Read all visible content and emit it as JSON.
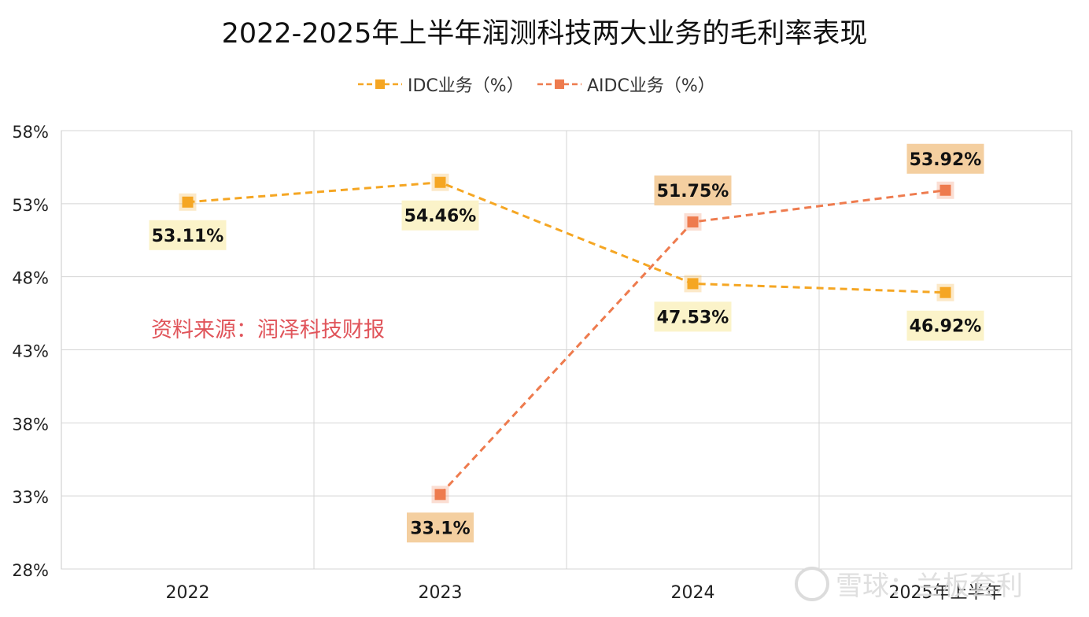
{
  "chart_data": {
    "type": "line",
    "title": "2022-2025年上半年润测科技两大业务的毛利率表现",
    "categories": [
      "2022",
      "2023",
      "2024",
      "2025年上半年"
    ],
    "ylim": [
      28,
      58
    ],
    "yticks": [
      58,
      53,
      48,
      43,
      38,
      33,
      28
    ],
    "ytick_labels": [
      "58%",
      "53%",
      "48%",
      "43%",
      "38%",
      "33%",
      "28%"
    ],
    "grid": true,
    "legend_position": "top-center",
    "series": [
      {
        "name": "IDC业务（%）",
        "color": "#F5A623",
        "label_bg": "#FBF3C9",
        "x": [
          "2022",
          "2023",
          "2024",
          "2025年上半年"
        ],
        "values": [
          53.11,
          54.46,
          47.53,
          46.92
        ],
        "labels": [
          "53.11%",
          "54.46%",
          "47.53%",
          "46.92%"
        ]
      },
      {
        "name": "AIDC业务（%）",
        "color": "#EE7B4E",
        "label_bg": "#F4CFA0",
        "x": [
          "2023",
          "2024",
          "2025年上半年"
        ],
        "values": [
          33.1,
          51.75,
          53.92
        ],
        "labels": [
          "33.1%",
          "51.75%",
          "53.92%"
        ]
      }
    ],
    "annotation": "资料来源：润泽科技财报",
    "annotation_color": "#E0545A"
  },
  "watermark": "雪球：兰板套利"
}
